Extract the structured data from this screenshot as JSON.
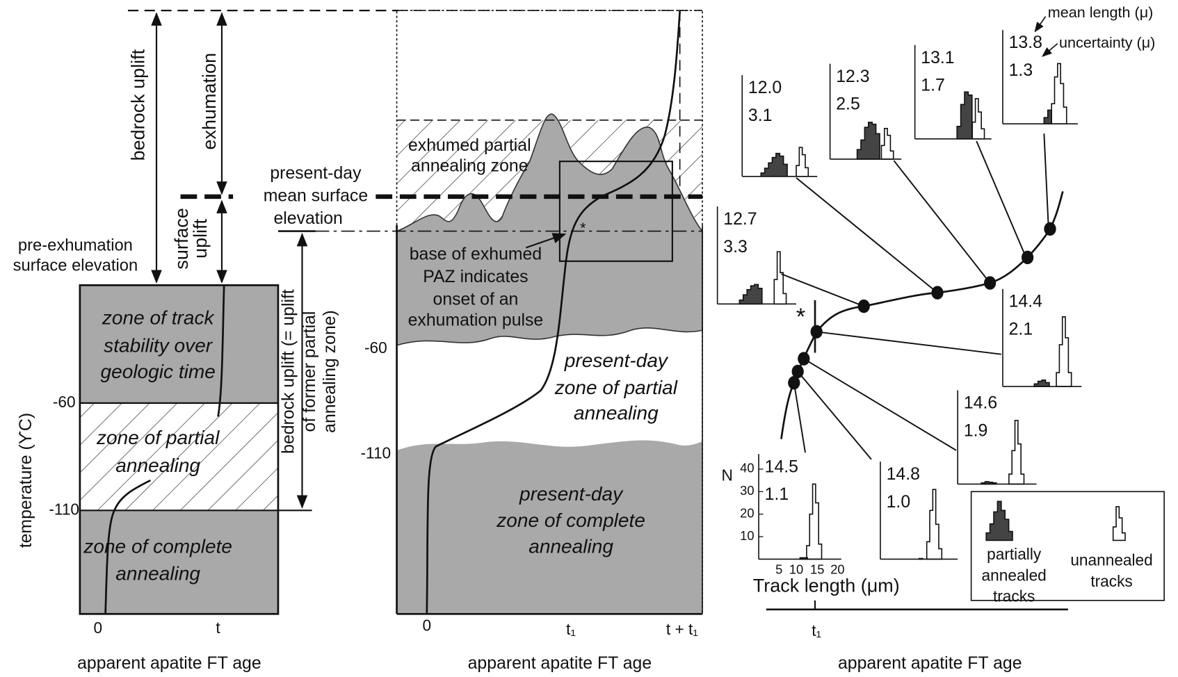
{
  "left_panel": {
    "bedrock_uplift": "bedrock uplift",
    "exhumation": "exhumation",
    "surface_uplift": [
      "surface",
      "uplift"
    ],
    "pre_exhumation": [
      "pre-exhumation",
      "surface elevation"
    ],
    "present_day_surface": [
      "present-day",
      "mean surface",
      "elevation"
    ],
    "bedrock_uplift_paz": [
      "bedrock uplift (= uplift",
      "of former partial",
      "annealing zone)"
    ],
    "zones": [
      [
        "zone of track",
        "stability over",
        "geologic time"
      ],
      [
        "zone of partial",
        "annealing"
      ],
      [
        "zone of complete",
        "annealing"
      ]
    ],
    "y_axis_label": "temperature (ϒC)",
    "y_ticks": [
      "-60",
      "-110"
    ],
    "x_ticks": [
      "0",
      "t"
    ],
    "x_axis_label": "apparent apatite FT age"
  },
  "middle_panel": {
    "exhumed_paz": [
      "exhumed partial",
      "annealing zone"
    ],
    "base_note": [
      "base of exhumed",
      "PAZ indicates",
      "onset of an",
      "exhumation pulse"
    ],
    "star": "*",
    "partial_zone": [
      "present-day",
      "zone of partial",
      "annealing"
    ],
    "complete_zone": [
      "present-day",
      "zone of complete",
      "annealing"
    ],
    "y_ticks": [
      "-60",
      "-110"
    ],
    "x_ticks": [
      "0",
      "t₁",
      "t + t₁"
    ],
    "x_axis_label": "apparent apatite FT age"
  },
  "right_panel": {
    "mean_label": "mean length (μ)",
    "uncertainty_label": "uncertainty (μ)",
    "histograms": [
      {
        "mean": "12.0",
        "uncertainty": "3.1"
      },
      {
        "mean": "12.3",
        "uncertainty": "2.5"
      },
      {
        "mean": "13.1",
        "uncertainty": "1.7"
      },
      {
        "mean": "13.8",
        "uncertainty": "1.3"
      },
      {
        "mean": "12.7",
        "uncertainty": "3.3"
      },
      {
        "mean": "14.4",
        "uncertainty": "2.1"
      },
      {
        "mean": "14.6",
        "uncertainty": "1.9"
      },
      {
        "mean": "14.5",
        "uncertainty": "1.1"
      },
      {
        "mean": "14.8",
        "uncertainty": "1.0"
      }
    ],
    "n_label": "N",
    "n_ticks": [
      "10",
      "20",
      "30",
      "40"
    ],
    "length_ticks": [
      "5",
      "10",
      "15",
      "20"
    ],
    "track_length_label": "Track length (μm)",
    "star": "*",
    "legend": {
      "partial": [
        "partially",
        "annealed",
        "tracks"
      ],
      "unannealed": [
        "unannealed",
        "tracks"
      ]
    },
    "x_tick": "t₁",
    "x_axis_label": "apparent apatite FT age"
  }
}
